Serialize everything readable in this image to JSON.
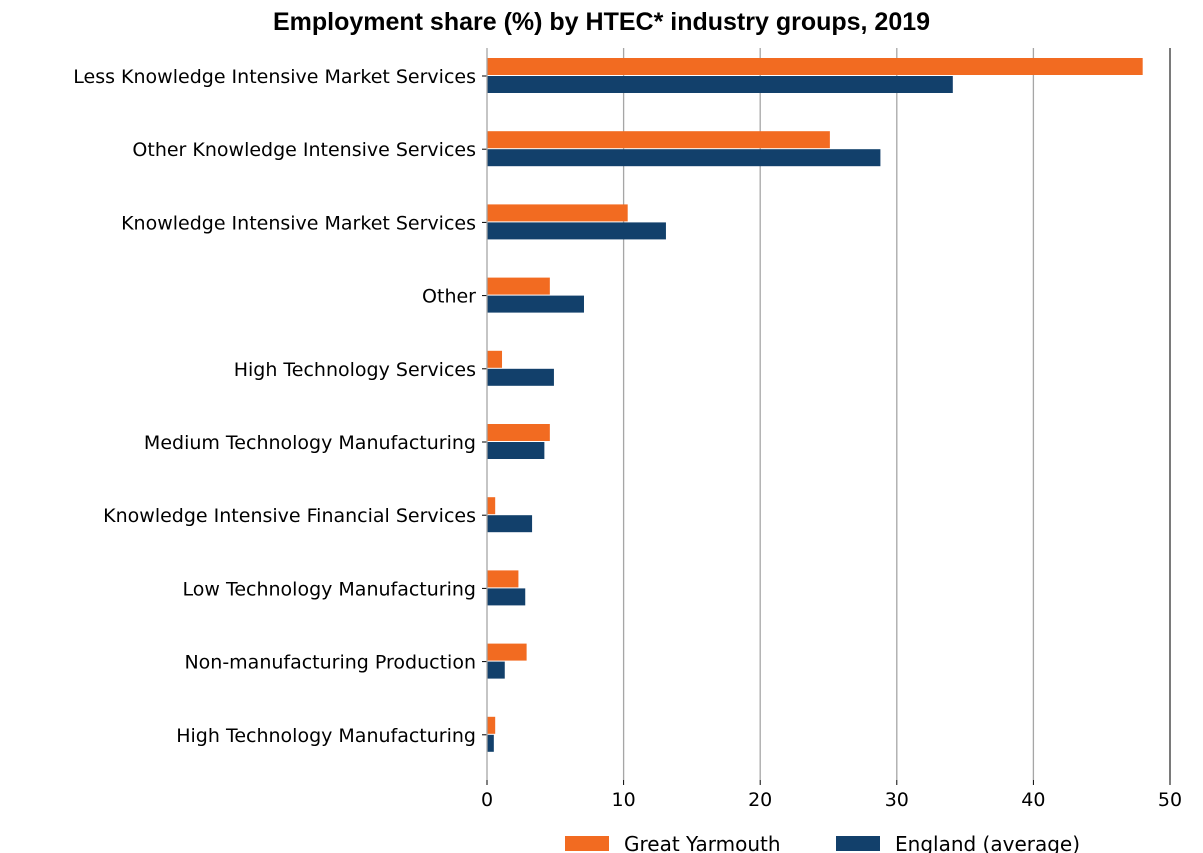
{
  "chart_data": {
    "type": "bar",
    "orientation": "horizontal",
    "title": "Employment share (%) by HTEC* industry groups, 2019",
    "xlabel": "",
    "ylabel": "",
    "xlim": [
      0,
      50
    ],
    "x_ticks": [
      0,
      10,
      20,
      30,
      40,
      50
    ],
    "grid": "vertical",
    "legend_position": "bottom",
    "categories": [
      "Less Knowledge Intensive Market Services",
      "Other Knowledge Intensive Services",
      "Knowledge Intensive Market Services",
      "Other",
      "High Technology Services",
      "Medium Technology Manufacturing",
      "Knowledge Intensive Financial Services",
      "Low Technology Manufacturing",
      "Non-manufacturing Production",
      "High Technology Manufacturing"
    ],
    "series": [
      {
        "name": "Great Yarmouth",
        "color": "#F26B21",
        "values": [
          48.0,
          25.1,
          10.3,
          4.6,
          1.1,
          4.6,
          0.6,
          2.3,
          2.9,
          0.6
        ]
      },
      {
        "name": "England (average)",
        "color": "#12406B",
        "values": [
          34.1,
          28.8,
          13.1,
          7.1,
          4.9,
          4.2,
          3.3,
          2.8,
          1.3,
          0.5
        ]
      }
    ]
  }
}
